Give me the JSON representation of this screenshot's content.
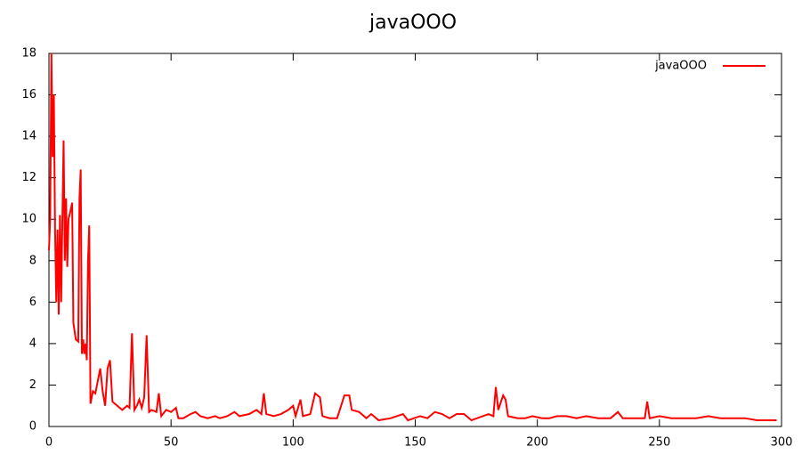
{
  "chart_data": {
    "type": "line",
    "title": "javaOOO",
    "x": [
      0,
      0.5,
      1,
      1.5,
      2,
      2.5,
      3,
      3.5,
      4,
      4.5,
      5,
      5.5,
      6,
      6.5,
      7,
      7.5,
      8,
      9,
      9.5,
      10,
      11,
      12,
      12.5,
      13,
      13.5,
      14,
      14.5,
      15,
      15.5,
      16,
      16.5,
      17,
      18,
      19,
      20,
      21,
      22,
      23,
      24,
      25,
      26,
      28,
      30,
      32,
      33,
      34,
      35,
      36,
      37,
      38,
      39,
      40,
      41,
      42,
      44,
      45,
      46,
      48,
      50,
      52,
      53,
      55,
      58,
      60,
      62,
      65,
      68,
      70,
      73,
      76,
      78,
      82,
      85,
      87,
      88,
      89,
      92,
      95,
      98,
      100,
      101,
      103,
      104,
      107,
      109,
      111,
      112,
      115,
      118,
      121,
      123,
      124,
      127,
      130,
      132,
      135,
      140,
      145,
      147,
      152,
      155,
      158,
      161,
      164,
      167,
      170,
      173,
      180,
      182,
      183,
      184,
      186,
      187,
      188,
      192,
      195,
      198,
      202,
      205,
      208,
      212,
      216,
      220,
      225,
      230,
      233,
      235,
      240,
      244,
      245,
      246,
      250,
      255,
      260,
      265,
      270,
      275,
      280,
      285,
      290,
      295,
      298
    ],
    "series": [
      {
        "name": "javaOOO",
        "color": "#ff0000",
        "values": [
          8.5,
          10,
          18,
          13,
          16,
          9.5,
          6,
          9.5,
          5.4,
          10.2,
          6,
          10,
          13.8,
          8,
          11,
          7.7,
          10,
          10.5,
          10.8,
          5,
          4.2,
          4.1,
          11,
          12.4,
          3.5,
          4.2,
          3.5,
          4,
          3.2,
          8,
          9.7,
          1.1,
          1.7,
          1.6,
          2.2,
          2.8,
          1.7,
          1,
          2.8,
          3.2,
          1.2,
          1,
          0.8,
          1,
          0.9,
          4.5,
          0.8,
          1,
          1.3,
          0.9,
          1.4,
          4.4,
          0.7,
          0.8,
          0.7,
          1.6,
          0.5,
          0.8,
          0.7,
          0.9,
          0.4,
          0.4,
          0.6,
          0.7,
          0.5,
          0.4,
          0.5,
          0.4,
          0.5,
          0.7,
          0.5,
          0.6,
          0.8,
          0.6,
          1.6,
          0.6,
          0.5,
          0.6,
          0.8,
          1,
          0.5,
          1.3,
          0.5,
          0.6,
          1.6,
          1.4,
          0.5,
          0.4,
          0.4,
          1.5,
          1.5,
          0.8,
          0.7,
          0.4,
          0.6,
          0.3,
          0.4,
          0.6,
          0.3,
          0.5,
          0.4,
          0.7,
          0.6,
          0.4,
          0.6,
          0.6,
          0.3,
          0.6,
          0.5,
          1.9,
          0.8,
          1.5,
          1.3,
          0.5,
          0.4,
          0.4,
          0.5,
          0.4,
          0.4,
          0.5,
          0.5,
          0.4,
          0.5,
          0.4,
          0.4,
          0.7,
          0.4,
          0.4,
          0.4,
          1.2,
          0.4,
          0.5,
          0.4,
          0.4,
          0.4,
          0.5,
          0.4,
          0.4,
          0.4,
          0.3,
          0.3,
          0.3
        ]
      }
    ],
    "xlim": [
      0,
      300
    ],
    "xticks": [
      0,
      50,
      100,
      150,
      200,
      250,
      300
    ],
    "ylim": [
      0,
      18
    ],
    "yticks": [
      0,
      2,
      4,
      6,
      8,
      10,
      12,
      14,
      16,
      18
    ],
    "legend": "top-right"
  }
}
